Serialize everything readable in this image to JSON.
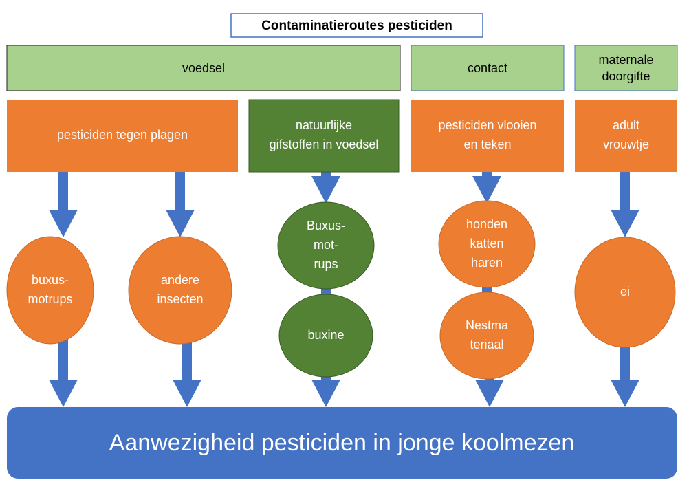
{
  "title": "Contaminatieroutes pesticiden",
  "categories": [
    {
      "lines": [
        "voedsel"
      ]
    },
    {
      "lines": [
        "contact"
      ]
    },
    {
      "lines": [
        "maternale",
        "doorgifte"
      ]
    }
  ],
  "sources": [
    {
      "lines": [
        "pesticiden tegen plagen"
      ]
    },
    {
      "lines": [
        "natuurlijke",
        "gifstoffen in voedsel"
      ]
    },
    {
      "lines": [
        "pesticiden vlooien",
        "en teken"
      ]
    },
    {
      "lines": [
        "adult",
        "vrouwtje"
      ]
    }
  ],
  "nodes": [
    {
      "lines": [
        "buxus-",
        "motrups"
      ]
    },
    {
      "lines": [
        "andere",
        "insecten"
      ]
    },
    {
      "lines": [
        "Buxus-",
        "mot-",
        "rups"
      ]
    },
    {
      "lines": [
        "buxine"
      ]
    },
    {
      "lines": [
        "honden",
        "katten",
        "haren"
      ]
    },
    {
      "lines": [
        "Nestma",
        "teriaal"
      ]
    },
    {
      "lines": [
        "ei"
      ]
    }
  ],
  "outcome": "Aanwezigheid pesticiden in jonge koolmezen"
}
